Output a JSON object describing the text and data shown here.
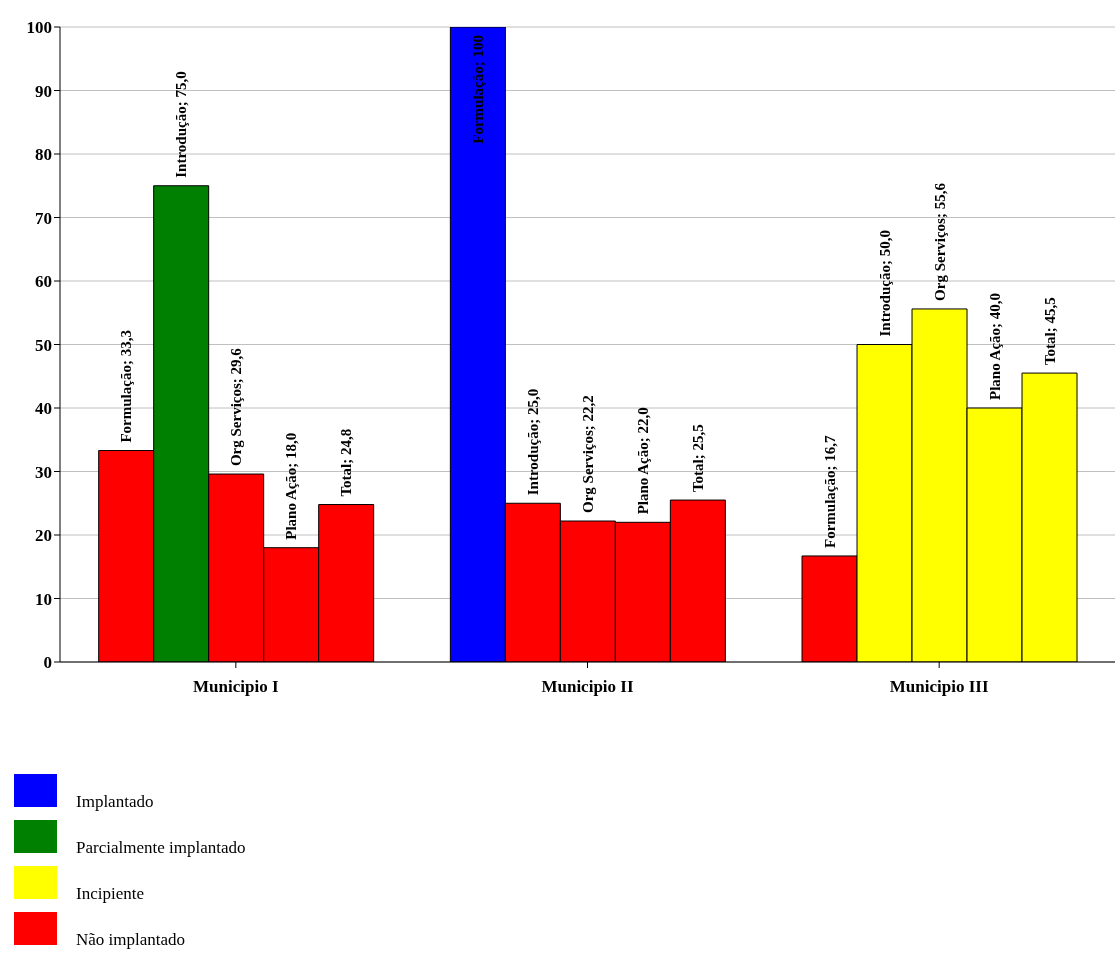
{
  "chart_data": {
    "type": "bar",
    "categories": [
      "Municipio I",
      "Municipio II",
      "Municipio III"
    ],
    "ylim": [
      0,
      100
    ],
    "yticks": [
      0,
      10,
      20,
      30,
      40,
      50,
      60,
      70,
      80,
      90,
      100
    ],
    "grid": "y",
    "legend": "bottom left",
    "series": [
      {
        "colors": [
          "#ff0000",
          "#0000ff",
          "#ff0000"
        ],
        "values": [
          33.3,
          100,
          16.7
        ],
        "value_labels": [
          "Formulação; 33,3",
          "Formulação; 100",
          "Formulação; 16,7"
        ]
      },
      {
        "colors": [
          "#008000",
          "#ff0000",
          "#ffff00"
        ],
        "values": [
          75.0,
          25.0,
          50.0
        ],
        "value_labels": [
          "Introdução; 75,0",
          "Introdução; 25,0",
          "Introdução; 50,0"
        ]
      },
      {
        "colors": [
          "#ff0000",
          "#ff0000",
          "#ffff00"
        ],
        "values": [
          29.6,
          22.2,
          55.6
        ],
        "value_labels": [
          "Org Serviços; 29,6",
          "Org Serviços; 22,2",
          "Org Serviços; 55,6"
        ]
      },
      {
        "colors": [
          "#ff0000",
          "#ff0000",
          "#ffff00"
        ],
        "values": [
          18.0,
          22.0,
          40.0
        ],
        "value_labels": [
          "Plano Ação; 18,0",
          "Plano Ação; 22,0",
          "Plano Ação; 40,0"
        ]
      },
      {
        "colors": [
          "#ff0000",
          "#ff0000",
          "#ffff00"
        ],
        "values": [
          24.8,
          25.5,
          45.5
        ],
        "value_labels": [
          "Total; 24,8",
          "Total; 25,5",
          "Total; 45,5"
        ]
      },
      {
        "name": "Implantado",
        "color": "#0000ff",
        "values": [
          null,
          null,
          null
        ]
      },
      {
        "name": "Parcialmente implantado",
        "color": "#008000",
        "values": [
          null,
          null,
          null
        ]
      },
      {
        "name": "Incipiente",
        "color": "#ffff00",
        "values": [
          null,
          null,
          null
        ]
      },
      {
        "name": "Não implantado",
        "color": "#ff0000",
        "values": [
          null,
          null,
          null
        ]
      }
    ]
  }
}
